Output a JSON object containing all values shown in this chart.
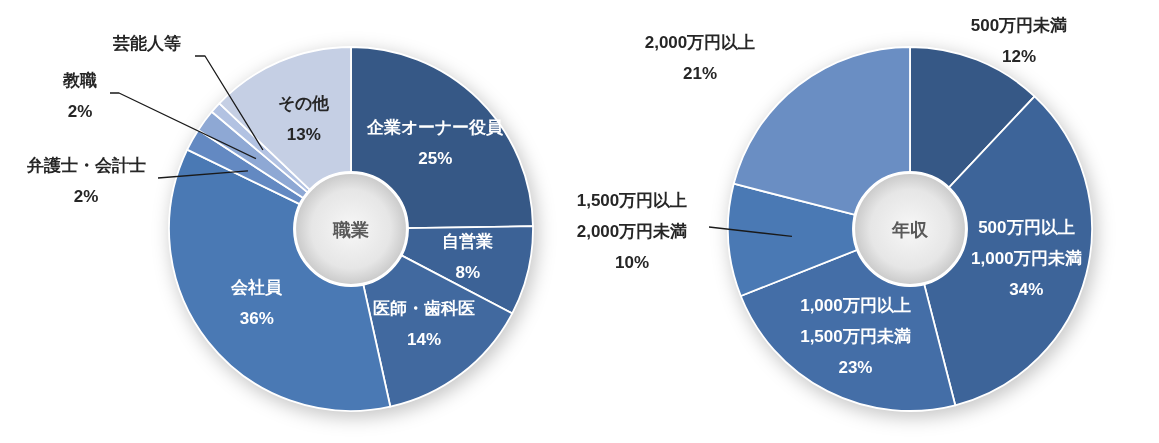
{
  "chart_data": [
    {
      "type": "donut",
      "title": "職業",
      "categories": [
        "企業オーナー役員",
        "自営業",
        "医師・歯科医",
        "会社員",
        "弁護士・会計士",
        "教職",
        "芸能人等",
        "その他"
      ],
      "values": [
        25,
        8,
        14,
        36,
        2,
        2,
        1,
        13
      ],
      "colors": [
        "#365886",
        "#3c6296",
        "#41699f",
        "#4a79b4",
        "#6389c2",
        "#8ea8d4",
        "#b2c2e2",
        "#c5cfe4"
      ],
      "value_labels": [
        "25%",
        "8%",
        "14%",
        "36%",
        "2%",
        "2%",
        null,
        "13%"
      ]
    },
    {
      "type": "donut",
      "title": "年収",
      "categories": [
        "500万円未満",
        "500万円以上\n1,000万円未満",
        "1,000万円以上\n1,500万円未満",
        "1,500万円以上\n2,000万円未満",
        "2,000万円以上"
      ],
      "values": [
        12,
        34,
        23,
        10,
        21
      ],
      "colors": [
        "#365886",
        "#3d6499",
        "#446ea7",
        "#4a79b4",
        "#6a8ec3"
      ],
      "value_labels": [
        "12%",
        "34%",
        "23%",
        "10%",
        "21%"
      ]
    }
  ]
}
